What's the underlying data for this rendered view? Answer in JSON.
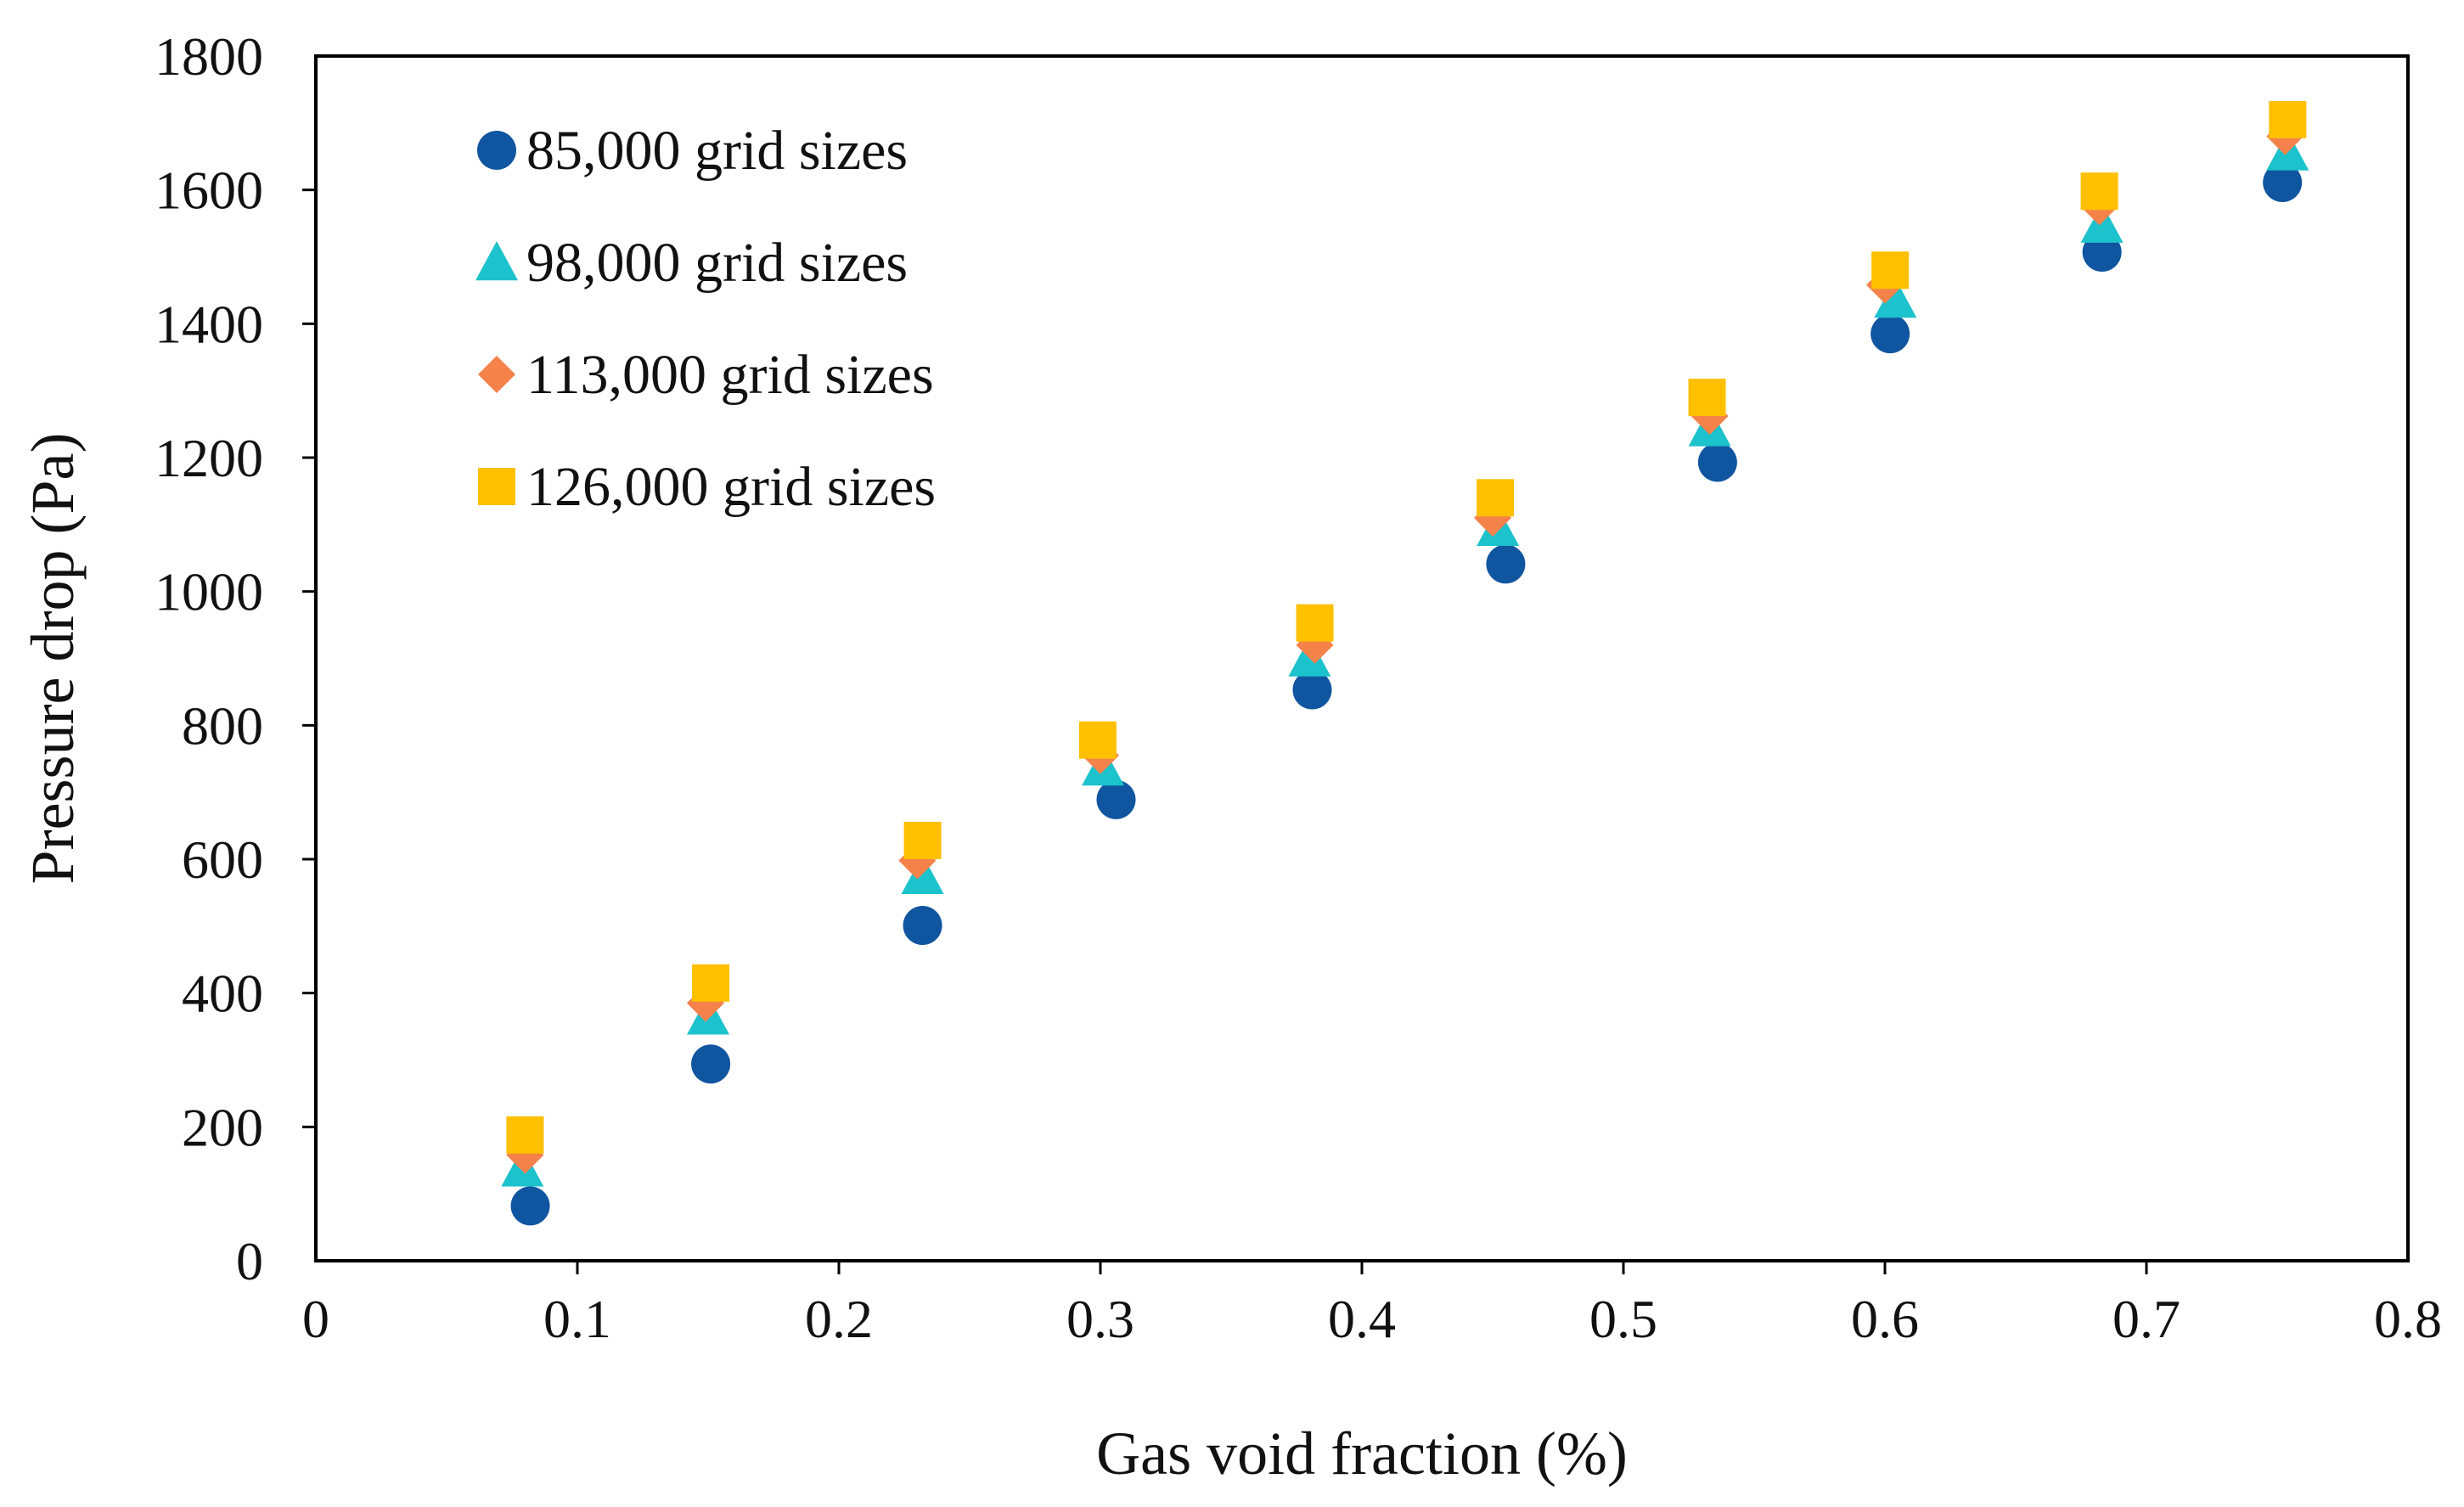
{
  "chart_data": {
    "type": "scatter",
    "title": "",
    "xlabel": "Gas void fraction (%)",
    "ylabel": "Pressure drop (Pa)",
    "xlim": [
      0,
      0.8
    ],
    "ylim": [
      0,
      1800
    ],
    "xticks": [
      0,
      0.1,
      0.2,
      0.3,
      0.4,
      0.5,
      0.6,
      0.7,
      0.8
    ],
    "xtick_labels": [
      "0",
      "0.1",
      "0.2",
      "0.3",
      "0.4",
      "0.5",
      "0.6",
      "0.7",
      "0.8"
    ],
    "yticks": [
      0,
      200,
      400,
      600,
      800,
      1000,
      1200,
      1400,
      1600,
      1800
    ],
    "ytick_labels": [
      "0",
      "200",
      "400",
      "600",
      "800",
      "1000",
      "1200",
      "1400",
      "1600",
      "1800"
    ],
    "grid": false,
    "legend_position": "top-left",
    "series": [
      {
        "name": "85,000 grid sizes",
        "marker": "circle",
        "color": "#1055A0",
        "x": [
          0.082,
          0.151,
          0.232,
          0.306,
          0.381,
          0.455,
          0.536,
          0.602,
          0.683,
          0.752
        ],
        "y": [
          82,
          294,
          501,
          689,
          853,
          1041,
          1193,
          1385,
          1507,
          1611
        ]
      },
      {
        "name": "98,000 grid sizes",
        "marker": "triangle",
        "color": "#1CC2CC",
        "x": [
          0.079,
          0.15,
          0.232,
          0.301,
          0.38,
          0.452,
          0.533,
          0.604,
          0.683,
          0.754
        ],
        "y": [
          138,
          365,
          575,
          737,
          900,
          1095,
          1244,
          1436,
          1548,
          1656
        ]
      },
      {
        "name": "113,000 grid sizes",
        "marker": "diamond",
        "color": "#F5824B",
        "x": [
          0.08,
          0.149,
          0.23,
          0.3,
          0.382,
          0.45,
          0.533,
          0.6,
          0.682,
          0.753
        ],
        "y": [
          158,
          385,
          598,
          755,
          920,
          1110,
          1262,
          1458,
          1575,
          1680
        ]
      },
      {
        "name": "126,000 grid sizes",
        "marker": "square",
        "color": "#FFC000",
        "x": [
          0.08,
          0.151,
          0.232,
          0.299,
          0.382,
          0.451,
          0.532,
          0.602,
          0.682,
          0.754
        ],
        "y": [
          188,
          415,
          628,
          778,
          953,
          1140,
          1290,
          1480,
          1598,
          1705
        ]
      }
    ]
  }
}
